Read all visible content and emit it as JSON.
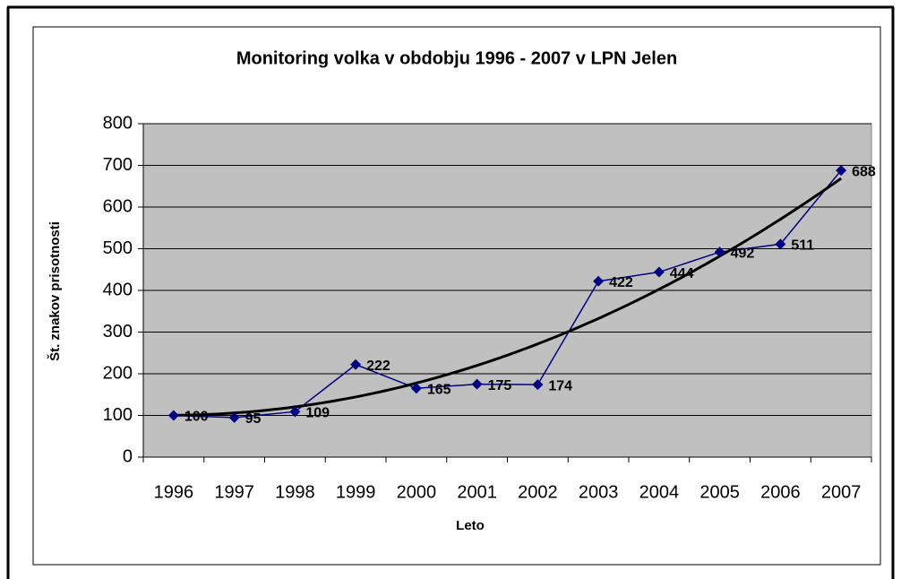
{
  "chart_data": {
    "type": "line",
    "title": "Monitoring volka v obdobju 1996 - 2007 v LPN Jelen",
    "x_label": "Leto",
    "y_label": "Št. znakov prisotnosti",
    "categories": [
      "1996",
      "1997",
      "1998",
      "1999",
      "2000",
      "2001",
      "2002",
      "2003",
      "2004",
      "2005",
      "2006",
      "2007"
    ],
    "series": [
      {
        "name": "Št. znakov prisotnosti",
        "color": "#000080",
        "values": [
          100,
          95,
          109,
          222,
          165,
          175,
          174,
          422,
          444,
          492,
          511,
          688
        ]
      }
    ],
    "trendline": {
      "type": "polynomial",
      "order": 2,
      "color": "#000000"
    },
    "ylim": [
      0,
      800
    ],
    "yticks": [
      0,
      100,
      200,
      300,
      400,
      500,
      600,
      700,
      800
    ],
    "grid": true,
    "plot_background": "#c0c0c0"
  }
}
